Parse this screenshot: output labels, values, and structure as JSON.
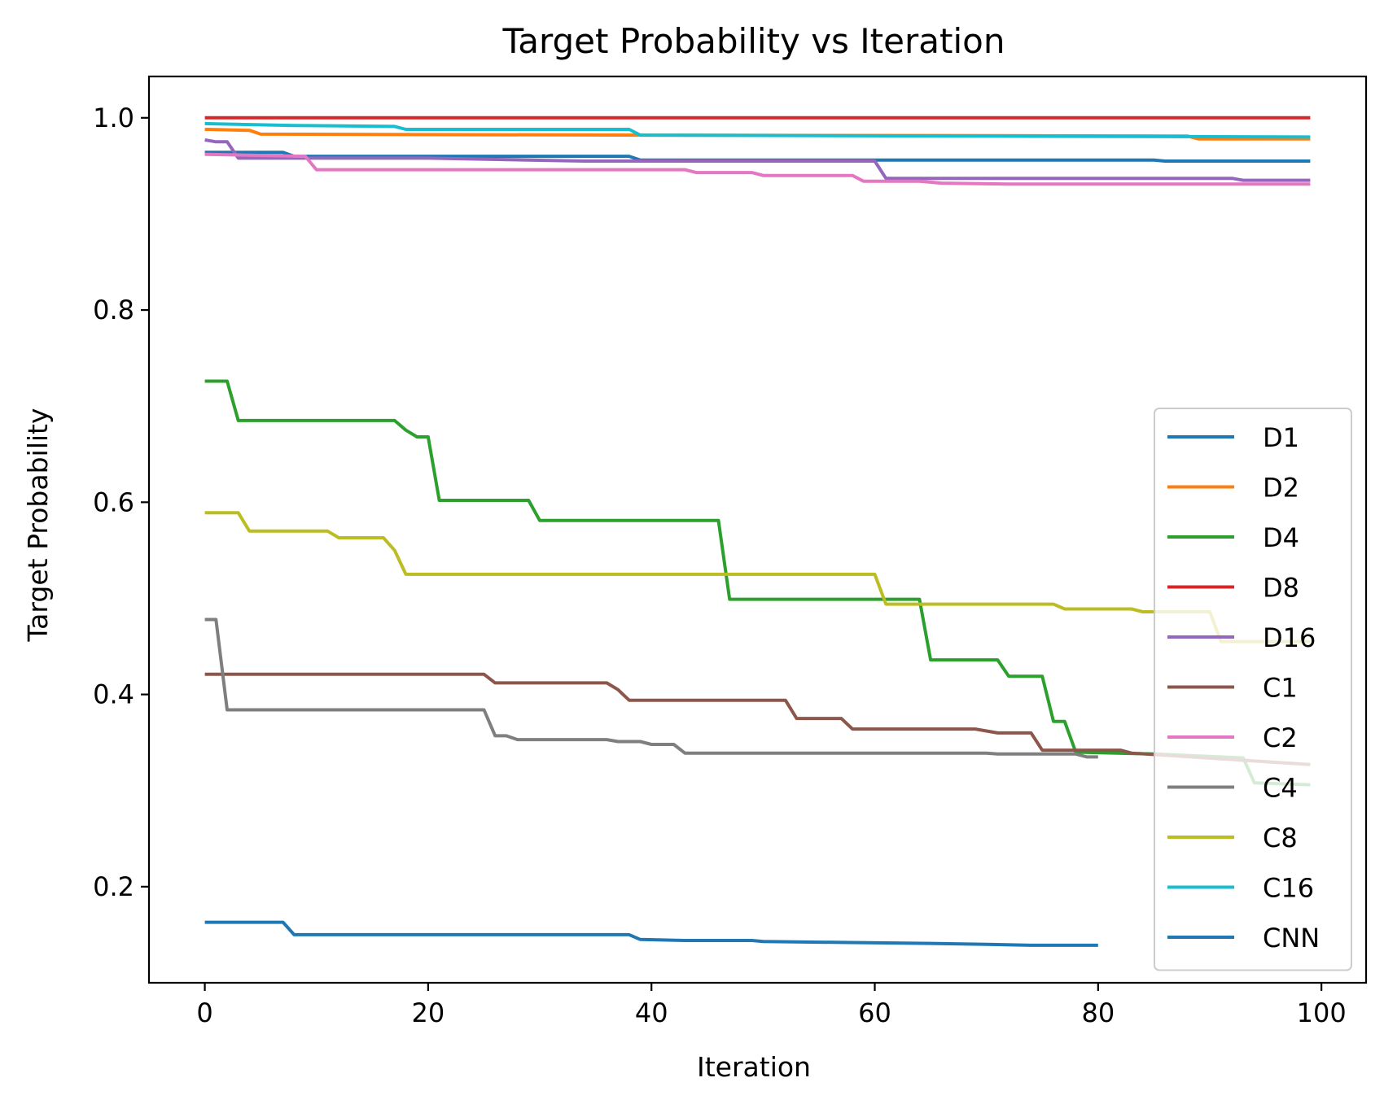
{
  "chart_data": {
    "type": "line",
    "title": "Target Probability vs Iteration",
    "xlabel": "Iteration",
    "ylabel": "Target Probability",
    "xlim": [
      -5,
      104
    ],
    "ylim": [
      0.1,
      1.043
    ],
    "xticks": [
      0,
      20,
      40,
      60,
      80,
      100
    ],
    "yticks": [
      0.2,
      0.4,
      0.6,
      0.8,
      1.0
    ],
    "xtick_labels": [
      "0",
      "20",
      "40",
      "60",
      "80",
      "100"
    ],
    "ytick_labels": [
      "0.2",
      "0.4",
      "0.6",
      "0.8",
      "1.0"
    ],
    "legend_position": "bottom-right",
    "grid": false,
    "series": [
      {
        "name": "D1",
        "color": "#1f77b4",
        "points": [
          [
            0,
            0.964
          ],
          [
            7,
            0.964
          ],
          [
            8,
            0.96
          ],
          [
            38,
            0.96
          ],
          [
            39,
            0.956
          ],
          [
            85,
            0.956
          ],
          [
            86,
            0.955
          ],
          [
            99,
            0.955
          ]
        ]
      },
      {
        "name": "D2",
        "color": "#ff7f0e",
        "points": [
          [
            0,
            0.988
          ],
          [
            4,
            0.987
          ],
          [
            5,
            0.983
          ],
          [
            40,
            0.982
          ],
          [
            88,
            0.981
          ],
          [
            89,
            0.978
          ],
          [
            99,
            0.978
          ]
        ]
      },
      {
        "name": "D4",
        "color": "#2ca02c",
        "points": [
          [
            0,
            0.726
          ],
          [
            2,
            0.726
          ],
          [
            3,
            0.685
          ],
          [
            17,
            0.685
          ],
          [
            18,
            0.675
          ],
          [
            19,
            0.668
          ],
          [
            20,
            0.668
          ],
          [
            21,
            0.602
          ],
          [
            29,
            0.602
          ],
          [
            30,
            0.581
          ],
          [
            46,
            0.581
          ],
          [
            47,
            0.499
          ],
          [
            64,
            0.499
          ],
          [
            65,
            0.436
          ],
          [
            71,
            0.436
          ],
          [
            72,
            0.419
          ],
          [
            75,
            0.419
          ],
          [
            76,
            0.372
          ],
          [
            77,
            0.372
          ],
          [
            78,
            0.34
          ],
          [
            85,
            0.338
          ],
          [
            93,
            0.334
          ],
          [
            94,
            0.308
          ],
          [
            99,
            0.306
          ]
        ]
      },
      {
        "name": "D8",
        "color": "#d62728",
        "points": [
          [
            0,
            1.0
          ],
          [
            99,
            1.0
          ]
        ]
      },
      {
        "name": "D16",
        "color": "#9467bd",
        "points": [
          [
            0,
            0.977
          ],
          [
            1,
            0.975
          ],
          [
            2,
            0.975
          ],
          [
            3,
            0.958
          ],
          [
            20,
            0.958
          ],
          [
            34,
            0.955
          ],
          [
            60,
            0.955
          ],
          [
            61,
            0.937
          ],
          [
            92,
            0.937
          ],
          [
            93,
            0.935
          ],
          [
            99,
            0.935
          ]
        ]
      },
      {
        "name": "C1",
        "color": "#8c564b",
        "points": [
          [
            0,
            0.421
          ],
          [
            25,
            0.421
          ],
          [
            26,
            0.412
          ],
          [
            36,
            0.412
          ],
          [
            37,
            0.405
          ],
          [
            38,
            0.394
          ],
          [
            52,
            0.394
          ],
          [
            53,
            0.375
          ],
          [
            57,
            0.375
          ],
          [
            58,
            0.364
          ],
          [
            69,
            0.364
          ],
          [
            71,
            0.36
          ],
          [
            74,
            0.36
          ],
          [
            75,
            0.342
          ],
          [
            82,
            0.342
          ],
          [
            83,
            0.339
          ],
          [
            99,
            0.327
          ]
        ]
      },
      {
        "name": "C2",
        "color": "#e377c2",
        "points": [
          [
            0,
            0.962
          ],
          [
            9,
            0.96
          ],
          [
            10,
            0.946
          ],
          [
            43,
            0.946
          ],
          [
            44,
            0.943
          ],
          [
            49,
            0.943
          ],
          [
            50,
            0.94
          ],
          [
            58,
            0.94
          ],
          [
            59,
            0.934
          ],
          [
            64,
            0.934
          ],
          [
            66,
            0.932
          ],
          [
            72,
            0.931
          ],
          [
            99,
            0.931
          ]
        ]
      },
      {
        "name": "C4",
        "color": "#7f7f7f",
        "points": [
          [
            0,
            0.478
          ],
          [
            1,
            0.478
          ],
          [
            2,
            0.384
          ],
          [
            25,
            0.384
          ],
          [
            26,
            0.357
          ],
          [
            27,
            0.357
          ],
          [
            28,
            0.353
          ],
          [
            36,
            0.353
          ],
          [
            37,
            0.351
          ],
          [
            39,
            0.351
          ],
          [
            40,
            0.348
          ],
          [
            42,
            0.348
          ],
          [
            43,
            0.339
          ],
          [
            70,
            0.339
          ],
          [
            71,
            0.338
          ],
          [
            78,
            0.338
          ],
          [
            79,
            0.335
          ],
          [
            80,
            0.335
          ]
        ]
      },
      {
        "name": "C8",
        "color": "#bcbd22",
        "points": [
          [
            0,
            0.589
          ],
          [
            3,
            0.589
          ],
          [
            4,
            0.57
          ],
          [
            11,
            0.57
          ],
          [
            12,
            0.563
          ],
          [
            16,
            0.563
          ],
          [
            17,
            0.55
          ],
          [
            18,
            0.525
          ],
          [
            60,
            0.525
          ],
          [
            61,
            0.494
          ],
          [
            76,
            0.494
          ],
          [
            77,
            0.489
          ],
          [
            83,
            0.489
          ],
          [
            84,
            0.486
          ],
          [
            90,
            0.486
          ],
          [
            91,
            0.455
          ],
          [
            99,
            0.455
          ]
        ]
      },
      {
        "name": "C16",
        "color": "#17becf",
        "points": [
          [
            0,
            0.994
          ],
          [
            8,
            0.992
          ],
          [
            17,
            0.991
          ],
          [
            18,
            0.988
          ],
          [
            38,
            0.988
          ],
          [
            39,
            0.982
          ],
          [
            99,
            0.98
          ]
        ]
      },
      {
        "name": "CNN",
        "color": "#1f77b4",
        "points": [
          [
            0,
            0.163
          ],
          [
            7,
            0.163
          ],
          [
            8,
            0.15
          ],
          [
            38,
            0.15
          ],
          [
            39,
            0.145
          ],
          [
            43,
            0.144
          ],
          [
            49,
            0.144
          ],
          [
            50,
            0.143
          ],
          [
            57,
            0.142
          ],
          [
            65,
            0.141
          ],
          [
            70,
            0.14
          ],
          [
            74,
            0.139
          ],
          [
            80,
            0.139
          ]
        ]
      }
    ]
  }
}
